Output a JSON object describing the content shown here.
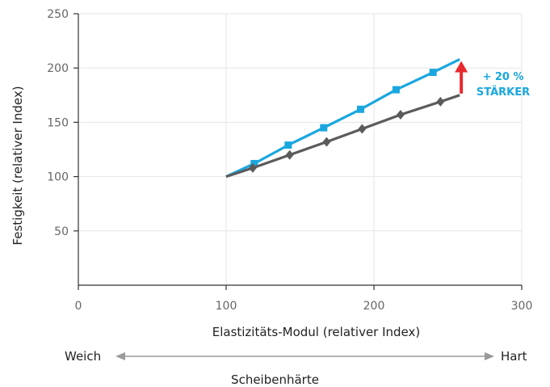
{
  "chart_data": {
    "type": "line",
    "xlabel": "Elastizitäts-Modul (relativer Index)",
    "ylabel": "Festigkeit (relativer Index)",
    "xlim": [
      0,
      300
    ],
    "ylim": [
      0,
      250
    ],
    "x_ticks": [
      "0",
      "100",
      "200",
      "300"
    ],
    "y_ticks": [
      "50",
      "100",
      "150",
      "200",
      "250"
    ],
    "grid": true,
    "series": [
      {
        "color": "#1aa7df",
        "marker": "square",
        "points": [
          [
            100,
            100
          ],
          [
            119,
            112
          ],
          [
            142,
            129
          ],
          [
            166,
            145
          ],
          [
            191,
            162
          ],
          [
            215,
            180
          ],
          [
            240,
            196
          ],
          [
            258,
            208
          ]
        ]
      },
      {
        "color": "#5b5b5b",
        "marker": "diamond",
        "points": [
          [
            100,
            100
          ],
          [
            118,
            108
          ],
          [
            143,
            120
          ],
          [
            168,
            132
          ],
          [
            192,
            144
          ],
          [
            218,
            157
          ],
          [
            245,
            169
          ],
          [
            258,
            175
          ]
        ]
      }
    ],
    "annotations": [
      {
        "line1": "+ 20 %",
        "line2": "STÄRKER",
        "color": "#1aa7df",
        "arrow_color": "#e8292e",
        "x": 258,
        "y_from": 175,
        "y_to": 208
      }
    ]
  },
  "scale": {
    "left_label": "Weich",
    "right_label": "Hart",
    "title": "Scheibenhärte"
  }
}
